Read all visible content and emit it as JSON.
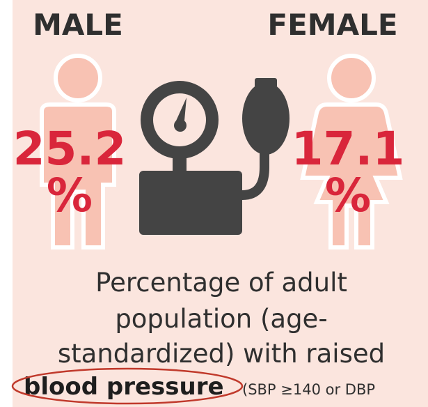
{
  "male": {
    "label": "MALE",
    "value": "25.2",
    "unit": "%"
  },
  "female": {
    "label": "FEMALE",
    "value": "17.1",
    "unit": "%"
  },
  "description": {
    "lines": [
      "Percentage of adult",
      "population (age-",
      "standardized) with raised"
    ],
    "highlight": "blood pressure",
    "note": "(SBP ≥140 or DBP"
  }
}
